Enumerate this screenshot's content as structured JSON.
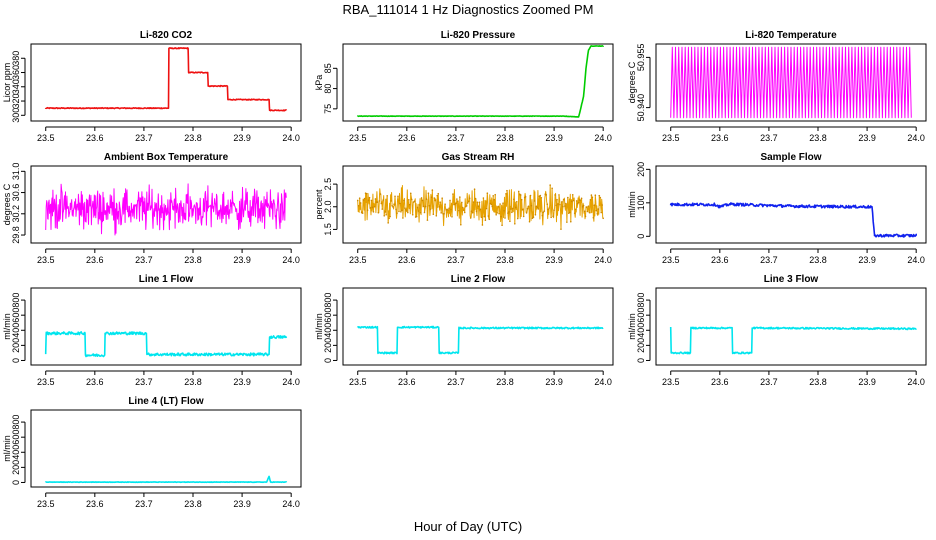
{
  "figure": {
    "title": "RBA_111014  1 Hz Diagnostics Zoomed PM",
    "xlabel": "Hour of Day (UTC)"
  },
  "chart_data": [
    {
      "id": "co2",
      "type": "line",
      "title": "Li-820 CO2",
      "ylabel": "Licor ppm",
      "color": "#ee1111",
      "xlim": [
        23.47,
        24.02
      ],
      "ylim": [
        292,
        400
      ],
      "xticks": [
        23.5,
        23.6,
        23.7,
        23.8,
        23.9,
        24.0
      ],
      "xtick_labels": [
        "23.5",
        "23.6",
        "23.7",
        "23.8",
        "23.9",
        "24.0"
      ],
      "yticks": [
        300,
        320,
        340,
        360,
        380
      ],
      "ytick_labels": [
        "300",
        "320",
        "340",
        "360",
        "380"
      ],
      "noise": 0.6,
      "x": [
        23.5,
        23.75,
        23.751,
        23.79,
        23.791,
        23.83,
        23.831,
        23.87,
        23.871,
        23.955,
        23.956,
        23.99
      ],
      "y": [
        310,
        310,
        394,
        394,
        360,
        360,
        341,
        341,
        322,
        322,
        307,
        307
      ]
    },
    {
      "id": "pressure",
      "type": "line",
      "title": "Li-820 Pressure",
      "ylabel": "kPa",
      "color": "#00cc00",
      "xlim": [
        23.47,
        24.02
      ],
      "ylim": [
        72,
        91
      ],
      "xticks": [
        23.5,
        23.6,
        23.7,
        23.8,
        23.9,
        24.0
      ],
      "xtick_labels": [
        "23.5",
        "23.6",
        "23.7",
        "23.8",
        "23.9",
        "24.0"
      ],
      "yticks": [
        75,
        80,
        85
      ],
      "ytick_labels": [
        "75",
        "80",
        "85"
      ],
      "noise": 0.05,
      "x": [
        23.5,
        23.92,
        23.95,
        23.96,
        23.965,
        23.97,
        23.975,
        24.0
      ],
      "y": [
        73.2,
        73.2,
        73.0,
        78,
        85,
        89.5,
        90.5,
        90.5
      ]
    },
    {
      "id": "temperature",
      "type": "line",
      "title": "Li-820 Temperature",
      "ylabel": "degrees C",
      "color": "#ff00ff",
      "xlim": [
        23.47,
        24.02
      ],
      "ylim": [
        50.936,
        50.959
      ],
      "xticks": [
        23.5,
        23.6,
        23.7,
        23.8,
        23.9,
        24.0
      ],
      "xtick_labels": [
        "23.5",
        "23.6",
        "23.7",
        "23.8",
        "23.9",
        "24.0"
      ],
      "yticks": [
        50.94,
        50.955
      ],
      "ytick_labels": [
        "50.940",
        "50.955"
      ],
      "pattern": "toggle",
      "levels": [
        50.937,
        50.958
      ],
      "x": [
        23.5,
        23.99
      ],
      "y": [
        50.937,
        50.958
      ]
    },
    {
      "id": "ambient",
      "type": "line",
      "title": "Ambient Box Temperature",
      "ylabel": "degrees C",
      "color": "#ff00ff",
      "xlim": [
        23.47,
        24.02
      ],
      "ylim": [
        29.65,
        31.1
      ],
      "xticks": [
        23.5,
        23.6,
        23.7,
        23.8,
        23.9,
        24.0
      ],
      "xtick_labels": [
        "23.5",
        "23.6",
        "23.7",
        "23.8",
        "23.9",
        "24.0"
      ],
      "yticks": [
        29.8,
        30.2,
        30.6,
        31.0
      ],
      "ytick_labels": [
        "29.8",
        "30.2",
        "30.6",
        "31.0"
      ],
      "pattern": "noise",
      "center": 30.3,
      "spread": 0.55,
      "x": [
        23.5,
        23.99
      ],
      "y": [
        30.3,
        30.3
      ]
    },
    {
      "id": "rh",
      "type": "line",
      "title": "Gas Stream RH",
      "ylabel": "percent",
      "color": "#e6a100",
      "xlim": [
        23.47,
        24.02
      ],
      "ylim": [
        1.2,
        2.9
      ],
      "xticks": [
        23.5,
        23.6,
        23.7,
        23.8,
        23.9,
        24.0
      ],
      "xtick_labels": [
        "23.5",
        "23.6",
        "23.7",
        "23.8",
        "23.9",
        "24.0"
      ],
      "yticks": [
        1.5,
        2.0,
        2.5
      ],
      "ytick_labels": [
        "1.5",
        "2.0",
        "2.5"
      ],
      "pattern": "noise",
      "center": 2.0,
      "spread": 0.55,
      "x": [
        23.5,
        24.0
      ],
      "y": [
        2.0,
        2.0
      ]
    },
    {
      "id": "sample",
      "type": "line",
      "title": "Sample Flow",
      "ylabel": "ml/min",
      "color": "#1122ee",
      "xlim": [
        23.47,
        24.02
      ],
      "ylim": [
        -20,
        210
      ],
      "xticks": [
        23.5,
        23.6,
        23.7,
        23.8,
        23.9,
        24.0
      ],
      "xtick_labels": [
        "23.5",
        "23.6",
        "23.7",
        "23.8",
        "23.9",
        "24.0"
      ],
      "yticks": [
        0,
        100,
        200
      ],
      "ytick_labels": [
        "0",
        "100",
        "200"
      ],
      "noise": 4,
      "x": [
        23.5,
        23.59,
        23.6,
        23.62,
        23.7,
        23.75,
        23.9,
        23.91,
        23.915,
        24.0
      ],
      "y": [
        95,
        95,
        88,
        96,
        92,
        90,
        88,
        88,
        2,
        2
      ]
    },
    {
      "id": "line1",
      "type": "line",
      "title": "Line 1 Flow",
      "ylabel": "ml/min",
      "color": "#00e5ee",
      "xlim": [
        23.47,
        24.02
      ],
      "ylim": [
        -60,
        960
      ],
      "xticks": [
        23.5,
        23.6,
        23.7,
        23.8,
        23.9,
        24.0
      ],
      "xtick_labels": [
        "23.5",
        "23.6",
        "23.7",
        "23.8",
        "23.9",
        "24.0"
      ],
      "yticks": [
        0,
        200,
        400,
        600,
        800
      ],
      "ytick_labels": [
        "0",
        "200",
        "400",
        "600",
        "800"
      ],
      "noise": 18,
      "x": [
        23.5,
        23.501,
        23.58,
        23.581,
        23.62,
        23.621,
        23.705,
        23.706,
        23.955,
        23.956,
        23.99
      ],
      "y": [
        100,
        360,
        360,
        70,
        70,
        360,
        360,
        80,
        80,
        310,
        310
      ]
    },
    {
      "id": "line2",
      "type": "line",
      "title": "Line 2 Flow",
      "ylabel": "ml/min",
      "color": "#00e5ee",
      "xlim": [
        23.47,
        24.02
      ],
      "ylim": [
        -60,
        960
      ],
      "xticks": [
        23.5,
        23.6,
        23.7,
        23.8,
        23.9,
        24.0
      ],
      "xtick_labels": [
        "23.5",
        "23.6",
        "23.7",
        "23.8",
        "23.9",
        "24.0"
      ],
      "yticks": [
        0,
        200,
        400,
        600,
        800
      ],
      "ytick_labels": [
        "0",
        "200",
        "400",
        "600",
        "800"
      ],
      "noise": 10,
      "x": [
        23.5,
        23.54,
        23.541,
        23.58,
        23.581,
        23.665,
        23.666,
        23.705,
        23.706,
        24.0
      ],
      "y": [
        440,
        440,
        100,
        100,
        440,
        440,
        100,
        100,
        430,
        430
      ]
    },
    {
      "id": "line3",
      "type": "line",
      "title": "Line 3 Flow",
      "ylabel": "ml/min",
      "color": "#00e5ee",
      "xlim": [
        23.47,
        24.02
      ],
      "ylim": [
        -60,
        960
      ],
      "xticks": [
        23.5,
        23.6,
        23.7,
        23.8,
        23.9,
        24.0
      ],
      "xtick_labels": [
        "23.5",
        "23.6",
        "23.7",
        "23.8",
        "23.9",
        "24.0"
      ],
      "yticks": [
        0,
        200,
        400,
        600,
        800
      ],
      "ytick_labels": [
        "0",
        "200",
        "400",
        "600",
        "800"
      ],
      "noise": 10,
      "x": [
        23.5,
        23.501,
        23.54,
        23.541,
        23.625,
        23.626,
        23.665,
        23.666,
        24.0
      ],
      "y": [
        440,
        100,
        100,
        430,
        430,
        100,
        100,
        430,
        420
      ]
    },
    {
      "id": "line4",
      "type": "line",
      "title": "Line 4 (LT) Flow",
      "ylabel": "ml/min",
      "color": "#00e5ee",
      "xlim": [
        23.47,
        24.02
      ],
      "ylim": [
        -60,
        960
      ],
      "xticks": [
        23.5,
        23.6,
        23.7,
        23.8,
        23.9,
        24.0
      ],
      "xtick_labels": [
        "23.5",
        "23.6",
        "23.7",
        "23.8",
        "23.9",
        "24.0"
      ],
      "yticks": [
        0,
        200,
        400,
        600,
        800
      ],
      "ytick_labels": [
        "0",
        "200",
        "400",
        "600",
        "800"
      ],
      "noise": 3,
      "x": [
        23.5,
        23.95,
        23.955,
        23.958,
        23.96,
        23.99
      ],
      "y": [
        5,
        5,
        80,
        5,
        5,
        5
      ]
    }
  ]
}
